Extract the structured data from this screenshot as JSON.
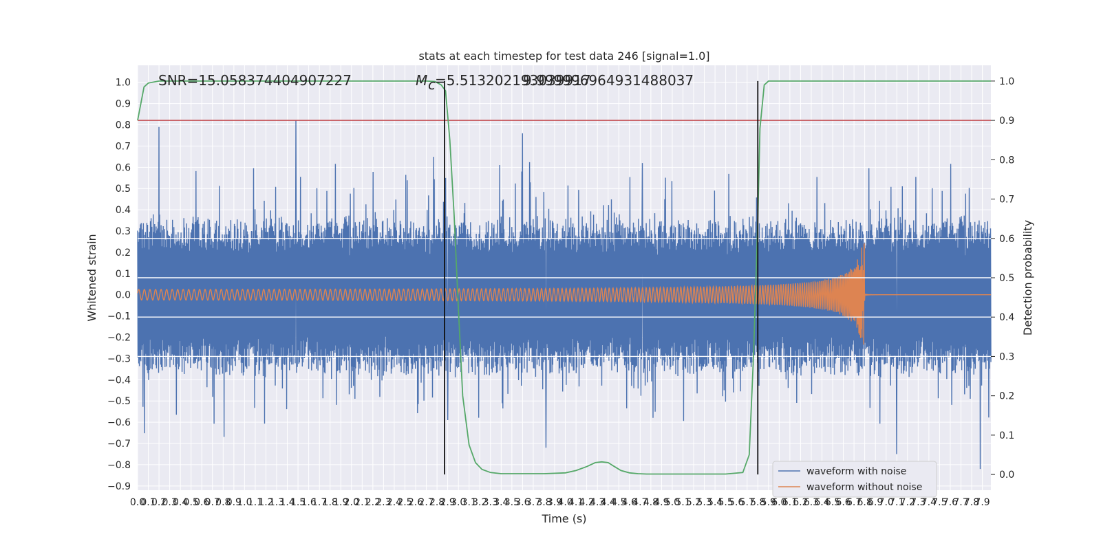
{
  "chart_data": {
    "type": "line",
    "title": "stats at each timestep for test data 246 [signal=1.0]",
    "xlabel": "Time (s)",
    "ylabel": "Whitened strain",
    "ylabel_right": "Detection probability",
    "xlim": [
      0.0,
      7.98
    ],
    "ylim": [
      -0.92,
      1.08
    ],
    "ylim_right": [
      -0.04,
      1.04
    ],
    "x_ticks": [
      0.0,
      0.1,
      0.2,
      0.3,
      0.4,
      0.5,
      0.6,
      0.7,
      0.8,
      0.9,
      1.0,
      1.1,
      1.2,
      1.3,
      1.4,
      1.5,
      1.6,
      1.7,
      1.8,
      1.9,
      2.0,
      2.1,
      2.2,
      2.3,
      2.4,
      2.5,
      2.6,
      2.7,
      2.8,
      2.9,
      3.0,
      3.1,
      3.2,
      3.3,
      3.4,
      3.5,
      3.6,
      3.7,
      3.8,
      3.9,
      4.0,
      4.1,
      4.2,
      4.3,
      4.4,
      4.5,
      4.6,
      4.7,
      4.8,
      4.9,
      5.0,
      5.1,
      5.2,
      5.3,
      5.4,
      5.5,
      5.6,
      5.7,
      5.8,
      5.9,
      6.0,
      6.1,
      6.2,
      6.3,
      6.4,
      6.5,
      6.6,
      6.7,
      6.8,
      6.9,
      7.0,
      7.1,
      7.2,
      7.3,
      7.4,
      7.5,
      7.6,
      7.7,
      7.8,
      7.9
    ],
    "x_tick_labels": [
      "0.0",
      "0.1",
      "0.2",
      "0.3",
      "0.4",
      "0.5",
      "0.6",
      "0.7",
      "0.8",
      "0.9",
      "1.0",
      "1.1",
      "1.2",
      "1.3",
      "1.4",
      "1.5",
      "1.6",
      "1.7",
      "1.8",
      "1.9",
      "2.0",
      "2.1",
      "2.2",
      "2.3",
      "2.4",
      "2.5",
      "2.6",
      "2.7",
      "2.8",
      "2.9",
      "3.0",
      "3.1",
      "3.2",
      "3.3",
      "3.4",
      "3.5",
      "3.6",
      "3.7",
      "3.8",
      "3.9",
      "4.0",
      "4.1",
      "4.2",
      "4.3",
      "4.4",
      "4.5",
      "4.6",
      "4.7",
      "4.8",
      "4.9",
      "5.0",
      "5.1",
      "5.2",
      "5.3",
      "5.4",
      "5.5",
      "5.6",
      "5.7",
      "5.8",
      "5.9",
      "6.0",
      "6.1",
      "6.2",
      "6.3",
      "6.4",
      "6.5",
      "6.6",
      "6.7",
      "6.8",
      "6.9",
      "7.0",
      "7.1",
      "7.2",
      "7.3",
      "7.4",
      "7.5",
      "7.6",
      "7.7",
      "7.8",
      "7.9"
    ],
    "y_ticks": [
      -0.9,
      -0.8,
      -0.7,
      -0.6,
      -0.5,
      -0.4,
      -0.3,
      -0.2,
      -0.1,
      0.0,
      0.1,
      0.2,
      0.3,
      0.4,
      0.5,
      0.6,
      0.7,
      0.8,
      0.9,
      1.0
    ],
    "y_tick_labels": [
      "−0.9",
      "−0.8",
      "−0.7",
      "−0.6",
      "−0.5",
      "−0.4",
      "−0.3",
      "−0.2",
      "−0.1",
      "0.0",
      "0.1",
      "0.2",
      "0.3",
      "0.4",
      "0.5",
      "0.6",
      "0.7",
      "0.8",
      "0.9",
      "1.0"
    ],
    "y_right_ticks": [
      0.0,
      0.1,
      0.2,
      0.3,
      0.4,
      0.5,
      0.6,
      0.7,
      0.8,
      0.9,
      1.0
    ],
    "y_right_tick_labels": [
      "0.0",
      "0.1",
      "0.2",
      "0.3",
      "0.4",
      "0.5",
      "0.6",
      "0.7",
      "0.8",
      "0.9",
      "1.0"
    ],
    "grid": true,
    "legend_position": "bottom-right",
    "annotations": {
      "snr": "SNR=15.058374404907227",
      "mc": "=5.513202193039917",
      "mc_symbol": "M",
      "mc_subscript": "c",
      "overlap": "9.999996964931488037"
    },
    "series": [
      {
        "name": "waveform with noise",
        "color": "#4c72b0",
        "axis": "left",
        "noise_envelope": {
          "typical_pos": 0.26,
          "typical_neg": -0.27,
          "peak_pos": 0.82,
          "peak_neg": -0.82
        },
        "notable_spikes": [
          {
            "x": 0.2,
            "y": 0.79
          },
          {
            "x": 1.48,
            "y": 0.82
          },
          {
            "x": 3.6,
            "y": 0.76
          },
          {
            "x": 4.72,
            "y": 0.62
          },
          {
            "x": 3.82,
            "y": -0.72
          },
          {
            "x": 7.1,
            "y": -0.75
          },
          {
            "x": 7.88,
            "y": -0.82
          },
          {
            "x": 2.9,
            "y": -0.59
          }
        ]
      },
      {
        "name": "waveform without noise",
        "color": "#dd8452",
        "axis": "left",
        "chirp": {
          "t_start": 0.0,
          "t_merge": 6.8,
          "amp_start": 0.02,
          "amp_peak": 0.3,
          "amp_after": 0.004
        }
      },
      {
        "name": "",
        "color": "#55a868",
        "axis": "right",
        "x": [
          0.0,
          0.06,
          0.1,
          0.2,
          0.4,
          0.8,
          1.2,
          1.6,
          2.0,
          2.4,
          2.6,
          2.7,
          2.78,
          2.84,
          2.88,
          2.92,
          2.96,
          3.0,
          3.04,
          3.1,
          3.16,
          3.22,
          3.3,
          3.4,
          3.6,
          3.8,
          4.0,
          4.1,
          4.2,
          4.28,
          4.34,
          4.4,
          4.46,
          4.52,
          4.6,
          4.68,
          4.76,
          4.9,
          5.2,
          5.5,
          5.66,
          5.72,
          5.76,
          5.8,
          5.82,
          5.86,
          5.9,
          6.0,
          6.2,
          6.6,
          7.0,
          7.5,
          7.98
        ],
        "values": [
          0.9,
          0.985,
          0.995,
          1.0,
          1.0,
          1.0,
          1.0,
          1.0,
          1.0,
          1.0,
          1.0,
          1.0,
          0.999,
          0.99,
          0.975,
          0.85,
          0.66,
          0.42,
          0.2,
          0.075,
          0.03,
          0.013,
          0.005,
          0.002,
          0.002,
          0.002,
          0.004,
          0.01,
          0.02,
          0.03,
          0.032,
          0.03,
          0.02,
          0.01,
          0.004,
          0.002,
          0.001,
          0.001,
          0.001,
          0.001,
          0.005,
          0.05,
          0.3,
          0.65,
          0.88,
          0.99,
          1.0,
          1.0,
          1.0,
          1.0,
          1.0,
          1.0,
          1.0
        ]
      },
      {
        "name": "",
        "color": "#c44e52",
        "axis": "right",
        "y_constant": 0.9
      },
      {
        "name": "",
        "color": "#ffffff",
        "axis": "right",
        "horizontal_lines": [
          0.3,
          0.4,
          0.5,
          0.6
        ]
      },
      {
        "name": "",
        "color": "#111111",
        "axis": "right",
        "vertical_lines": [
          {
            "x": 2.87,
            "y0": 0.0,
            "y1": 1.0
          },
          {
            "x": 5.8,
            "y0": 0.0,
            "y1": 1.0
          }
        ]
      }
    ]
  }
}
